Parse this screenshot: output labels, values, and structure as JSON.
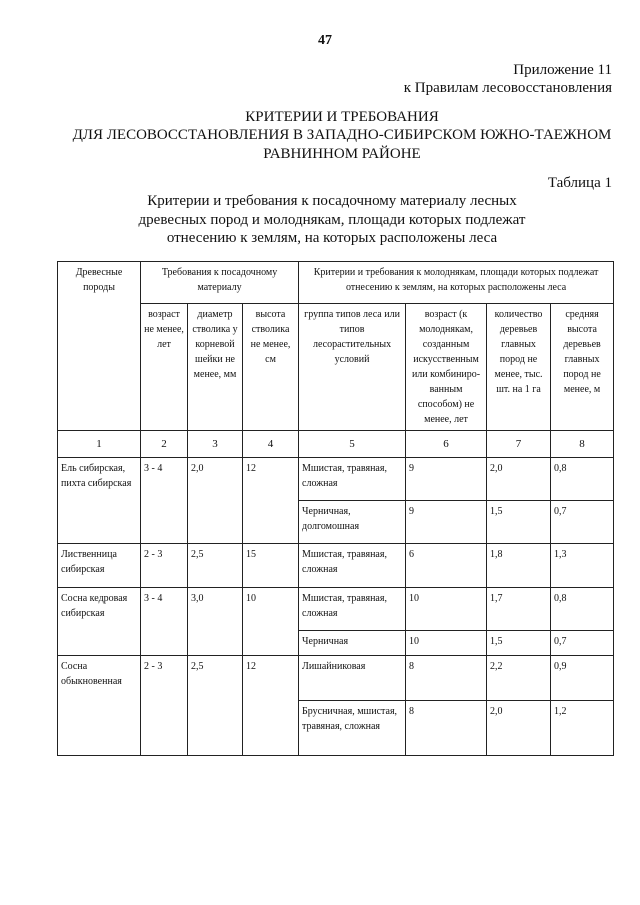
{
  "page_number": "47",
  "appendix": {
    "line1": "Приложение 11",
    "line2": "к Правилам лесовосстановления"
  },
  "title": {
    "line1": "КРИТЕРИИ И ТРЕБОВАНИЯ",
    "line2": "ДЛЯ ЛЕСОВОССТАНОВЛЕНИЯ В ЗАПАДНО-СИБИРСКОМ ЮЖНО-ТАЕЖНОМ",
    "line3": "РАВНИННОМ РАЙОНЕ"
  },
  "table_label": "Таблица 1",
  "table_caption": {
    "line1": "Критерии и требования к посадочному материалу лесных",
    "line2": "древесных пород и молоднякам, площади которых подлежат",
    "line3": "отнесению к землям, на которых расположены леса"
  },
  "table": {
    "headers": {
      "species": "Древесные породы",
      "planting_group": "Требования к посадочному материалу",
      "young_group": "Критерии и требования к молоднякам, площади которых подлежат отнесению к землям, на которых расположены леса",
      "cols": [
        "возраст не менее, лет",
        "диаметр стволика у корневой шейки не менее, мм",
        "высота стволика не менее, см",
        "группа типов леса или типов лесорастительных условий",
        "возраст (к молоднякам, созданным искусственным или комбиниро-ванным способом) не менее, лет",
        "количество деревьев главных пород не менее, тыс. шт. на 1 га",
        "средняя высота деревьев главных пород не менее, м"
      ],
      "numbers": [
        "1",
        "2",
        "3",
        "4",
        "5",
        "6",
        "7",
        "8"
      ]
    },
    "groups": [
      {
        "species": "Ель сибирская, пихта сибирская",
        "age": "3 - 4",
        "diameter": "2,0",
        "height": "12",
        "sub": [
          {
            "forest_type": "Мшистая, травяная, сложная",
            "age": "9",
            "count": "2,0",
            "avg_height": "0,8"
          },
          {
            "forest_type": "Черничная, долгомошная",
            "age": "9",
            "count": "1,5",
            "avg_height": "0,7"
          }
        ]
      },
      {
        "species": "Лиственница сибирская",
        "age": "2 - 3",
        "diameter": "2,5",
        "height": "15",
        "sub": [
          {
            "forest_type": "Мшистая, травяная, сложная",
            "age": "6",
            "count": "1,8",
            "avg_height": "1,3"
          }
        ]
      },
      {
        "species": "Сосна кедровая сибирская",
        "age": "3 - 4",
        "diameter": "3,0",
        "height": "10",
        "sub": [
          {
            "forest_type": "Мшистая, травяная, сложная",
            "age": "10",
            "count": "1,7",
            "avg_height": "0,8"
          },
          {
            "forest_type": "Черничная",
            "age": "10",
            "count": "1,5",
            "avg_height": "0,7"
          }
        ]
      },
      {
        "species": "Сосна обыкновенная",
        "age": "2 - 3",
        "diameter": "2,5",
        "height": "12",
        "sub": [
          {
            "forest_type": "Лишайниковая",
            "age": "8",
            "count": "2,2",
            "avg_height": "0,9"
          },
          {
            "forest_type": "Брусничная, мшистая, травяная, сложная",
            "age": "8",
            "count": "2,0",
            "avg_height": "1,2"
          }
        ]
      }
    ]
  }
}
